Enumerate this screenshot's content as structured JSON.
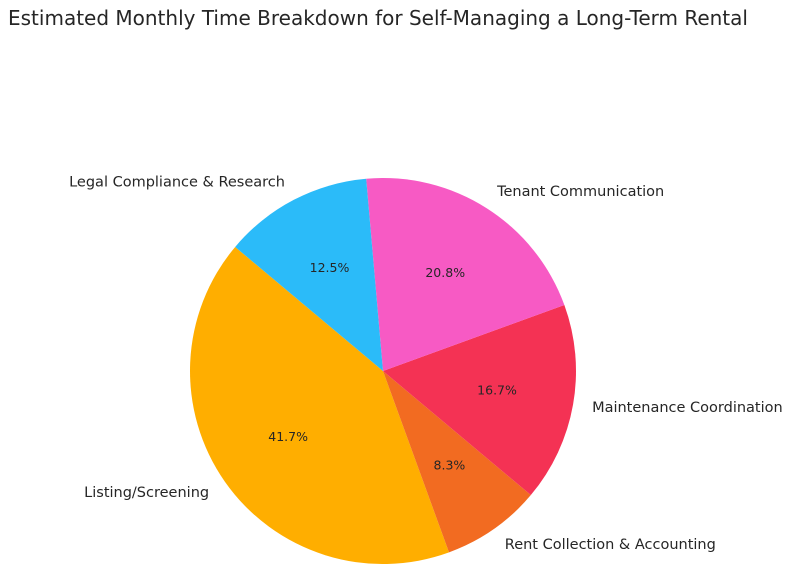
{
  "chart_data": {
    "type": "pie",
    "title": "Estimated Monthly Time Breakdown for Self-Managing a Long-Term Rental",
    "start_angle_deg": 140,
    "direction": "counterclockwise",
    "slices": [
      {
        "label": "Listing/Screening",
        "value": 10,
        "pct_label": "41.7%",
        "color": "#FFAE00"
      },
      {
        "label": "Rent Collection & Accounting",
        "value": 2,
        "pct_label": "8.3%",
        "color": "#F26B21"
      },
      {
        "label": "Maintenance Coordination",
        "value": 4,
        "pct_label": "16.7%",
        "color": "#F43254"
      },
      {
        "label": "Tenant Communication",
        "value": 5,
        "pct_label": "20.8%",
        "color": "#F75AC4"
      },
      {
        "label": "Legal Compliance & Research",
        "value": 3,
        "pct_label": "12.5%",
        "color": "#2BBBF9"
      }
    ]
  }
}
